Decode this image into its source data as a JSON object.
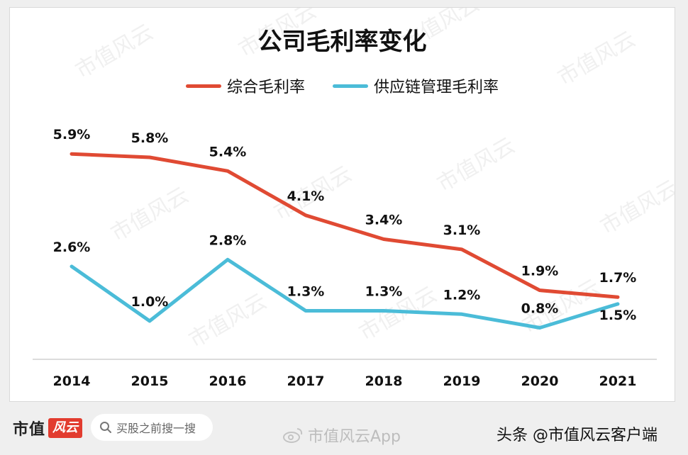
{
  "chart_data": {
    "type": "line",
    "title": "公司毛利率变化",
    "categories": [
      "2014",
      "2015",
      "2016",
      "2017",
      "2018",
      "2019",
      "2020",
      "2021"
    ],
    "series": [
      {
        "name": "综合毛利率",
        "color": "#e04a33",
        "values": [
          5.9,
          5.8,
          5.4,
          4.1,
          3.4,
          3.1,
          1.9,
          1.7
        ],
        "labels": [
          "5.9%",
          "5.8%",
          "5.4%",
          "4.1%",
          "3.4%",
          "3.1%",
          "1.9%",
          "1.7%"
        ]
      },
      {
        "name": "供应链管理毛利率",
        "color": "#4bbcd8",
        "values": [
          2.6,
          1.0,
          2.8,
          1.3,
          1.3,
          1.2,
          0.8,
          1.5
        ],
        "labels": [
          "2.6%",
          "1.0%",
          "2.8%",
          "1.3%",
          "1.3%",
          "1.2%",
          "0.8%",
          "1.5%"
        ]
      }
    ],
    "ylim": [
      0,
      7
    ],
    "grid": false,
    "legend_position": "top"
  },
  "watermark": "市值风云",
  "footer": {
    "brand_text": "市值",
    "brand_badge": "风云",
    "search_placeholder": "买股之前搜一搜",
    "app_watermark": "市值风云App",
    "toutiao_credit": "头条 @市值风云客户端"
  }
}
